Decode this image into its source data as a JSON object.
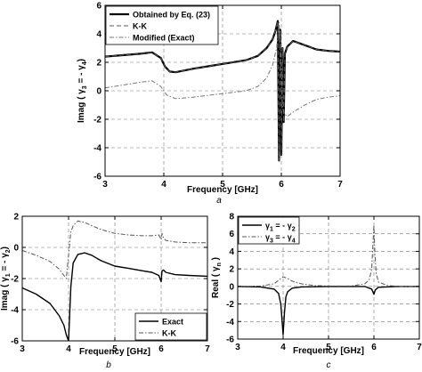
{
  "chart_data": [
    {
      "panel": "a",
      "type": "line",
      "xlabel": "Frequency [GHz]",
      "ylabel": "Imag ( γ3 = - γ4)",
      "xlim": [
        3,
        7
      ],
      "ylim": [
        -6,
        6
      ],
      "xticks": [
        "3",
        "4",
        "5",
        "6",
        "7"
      ],
      "yticks": [
        "6",
        "4",
        "2",
        "0",
        "-2",
        "-4",
        "-6"
      ],
      "grid": true,
      "legend": {
        "position": "top-left"
      },
      "series": [
        {
          "name": "Obtained by Eq. (23)",
          "style": "solid-thick",
          "color": "#000000",
          "x": [
            3.0,
            3.3,
            3.6,
            3.8,
            3.95,
            4.02,
            4.1,
            4.2,
            4.5,
            4.8,
            5.1,
            5.4,
            5.6,
            5.75,
            5.85,
            5.9,
            5.94,
            5.96,
            5.98,
            6.0,
            6.02,
            6.04,
            6.06,
            6.1,
            6.2,
            6.4,
            6.6,
            6.8,
            7.0
          ],
          "y": [
            2.4,
            2.5,
            2.6,
            2.7,
            2.3,
            1.7,
            1.35,
            1.3,
            1.55,
            1.75,
            1.95,
            2.15,
            2.45,
            3.0,
            3.6,
            4.2,
            4.9,
            -4.9,
            4.3,
            -4.5,
            3.0,
            -2.2,
            2.6,
            3.1,
            3.5,
            3.2,
            2.9,
            2.8,
            2.75
          ]
        },
        {
          "name": "K-K",
          "style": "dashed",
          "color": "#555555",
          "x": [
            3.0,
            3.3,
            3.6,
            3.8,
            3.95,
            4.02,
            4.1,
            4.2,
            4.5,
            4.8,
            5.1,
            5.4,
            5.6,
            5.75,
            5.85,
            5.9,
            5.94,
            5.96,
            5.98,
            6.0,
            6.02,
            6.04,
            6.06,
            6.1,
            6.2,
            6.4,
            6.6,
            6.8,
            7.0
          ],
          "y": [
            2.4,
            2.5,
            2.6,
            2.7,
            2.3,
            1.7,
            1.35,
            1.3,
            1.55,
            1.75,
            1.95,
            2.15,
            2.45,
            3.0,
            3.6,
            4.2,
            4.9,
            -4.9,
            4.3,
            -4.5,
            3.0,
            -2.2,
            2.6,
            3.1,
            3.5,
            3.2,
            2.9,
            2.8,
            2.75
          ]
        },
        {
          "name": "Modified (Exact)",
          "style": "dash-dot",
          "color": "#777777",
          "x": [
            3.0,
            3.3,
            3.6,
            3.8,
            3.95,
            4.05,
            4.2,
            4.5,
            4.8,
            5.1,
            5.4,
            5.6,
            5.75,
            5.85,
            5.92,
            5.96,
            5.99,
            6.02,
            6.05,
            6.1,
            6.2,
            6.4,
            6.6,
            6.8,
            7.0
          ],
          "y": [
            0.2,
            0.4,
            0.6,
            0.7,
            0.3,
            -0.3,
            -0.55,
            -0.45,
            -0.3,
            -0.15,
            0.0,
            0.3,
            0.9,
            1.8,
            3.0,
            4.8,
            2.8,
            -1.2,
            -1.6,
            -1.8,
            -1.5,
            -1.0,
            -0.6,
            -0.45,
            -0.35
          ]
        }
      ]
    },
    {
      "panel": "b",
      "type": "line",
      "xlabel": "Frequency [GHz]",
      "ylabel": "Imag ( γ1 = - γ2)",
      "xlim": [
        3,
        7
      ],
      "ylim": [
        -6,
        2
      ],
      "xticks": [
        "3",
        "4",
        "5",
        "6",
        "7"
      ],
      "yticks": [
        "2",
        "0",
        "-2",
        "-4",
        "-6"
      ],
      "grid": true,
      "legend": {
        "position": "bottom-right"
      },
      "series": [
        {
          "name": "Exact",
          "style": "solid",
          "color": "#000000",
          "x": [
            3.0,
            3.3,
            3.6,
            3.8,
            3.9,
            3.95,
            4.0,
            4.05,
            4.1,
            4.2,
            4.35,
            4.5,
            4.7,
            5.0,
            5.3,
            5.6,
            5.8,
            5.95,
            6.0,
            6.02,
            6.05,
            6.1,
            6.3,
            6.6,
            7.0
          ],
          "y": [
            -2.6,
            -3.0,
            -3.6,
            -4.4,
            -5.0,
            -5.6,
            -6.0,
            -2.5,
            -1.0,
            -0.45,
            -0.35,
            -0.5,
            -0.85,
            -1.2,
            -1.35,
            -1.5,
            -1.6,
            -1.8,
            -2.2,
            -1.5,
            -1.45,
            -1.6,
            -1.75,
            -1.8,
            -1.85
          ]
        },
        {
          "name": "K-K",
          "style": "dash-dot",
          "color": "#555555",
          "x": [
            3.0,
            3.3,
            3.6,
            3.8,
            3.9,
            3.95,
            4.0,
            4.05,
            4.1,
            4.2,
            4.35,
            4.5,
            4.7,
            5.0,
            5.3,
            5.6,
            5.8,
            5.95,
            6.0,
            6.02,
            6.05,
            6.1,
            6.3,
            6.6,
            7.0
          ],
          "y": [
            -0.2,
            -0.5,
            -0.9,
            -1.4,
            -1.8,
            -2.0,
            -0.5,
            1.0,
            1.4,
            1.7,
            1.6,
            1.4,
            1.15,
            0.9,
            0.8,
            0.75,
            0.75,
            0.8,
            0.5,
            0.9,
            0.6,
            0.45,
            0.35,
            0.3,
            0.3
          ]
        }
      ]
    },
    {
      "panel": "c",
      "type": "line",
      "xlabel": "Frequency [GHz]",
      "ylabel": "Real ( γn )",
      "xlim": [
        3,
        7
      ],
      "ylim": [
        -6,
        8
      ],
      "xticks": [
        "3",
        "4",
        "5",
        "6",
        "7"
      ],
      "yticks": [
        "8",
        "6",
        "4",
        "2",
        "0",
        "-2",
        "-4",
        "-6"
      ],
      "grid": true,
      "legend": {
        "position": "top-left"
      },
      "series": [
        {
          "name": "γ1 = - γ2",
          "style": "solid",
          "color": "#000000",
          "x": [
            3.0,
            3.5,
            3.8,
            3.9,
            3.95,
            4.0,
            4.03,
            4.06,
            4.1,
            4.2,
            4.4,
            5.0,
            5.8,
            5.95,
            6.0,
            6.03,
            6.1,
            6.5,
            7.0
          ],
          "y": [
            0.0,
            -0.05,
            -0.3,
            -0.8,
            -2.0,
            -5.5,
            -3.0,
            -1.2,
            -0.6,
            -0.2,
            -0.05,
            0.0,
            0.0,
            -0.3,
            -0.9,
            -0.4,
            -0.1,
            0.0,
            0.0
          ]
        },
        {
          "name": "γ3 = - γ4",
          "style": "dash-dot",
          "color": "#555555",
          "x": [
            3.0,
            3.5,
            3.8,
            3.9,
            4.0,
            4.1,
            4.2,
            4.4,
            4.7,
            5.0,
            5.5,
            5.8,
            5.9,
            5.95,
            5.98,
            6.0,
            6.02,
            6.05,
            6.1,
            6.3,
            6.6,
            7.0
          ],
          "y": [
            0.0,
            0.05,
            0.3,
            0.7,
            1.1,
            0.9,
            0.6,
            0.3,
            0.1,
            0.05,
            0.05,
            0.3,
            0.8,
            2.0,
            5.0,
            7.0,
            4.0,
            1.5,
            0.5,
            0.1,
            0.0,
            0.0
          ]
        }
      ]
    }
  ]
}
